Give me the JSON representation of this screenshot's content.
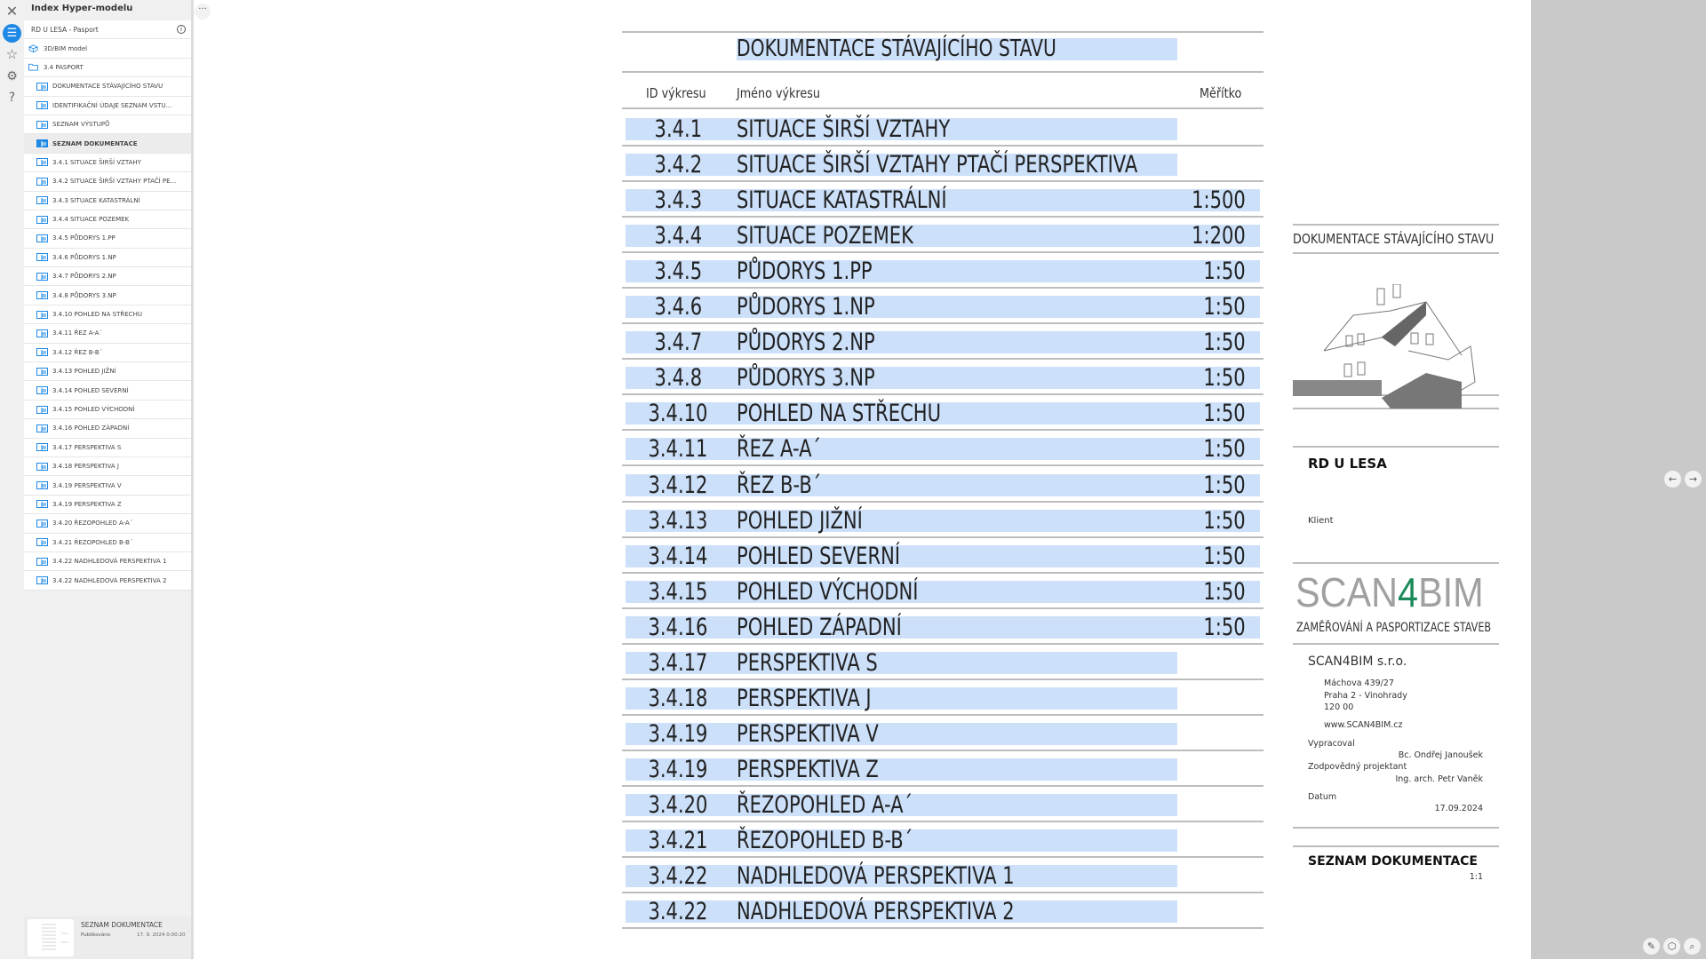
{
  "panel": {
    "title": "Index Hyper-modelu",
    "project": "RD U LESA - Pasport",
    "items": [
      {
        "label": "3D/BIM model",
        "type": "model",
        "level": 0
      },
      {
        "label": "3.4 PASPORT",
        "type": "folder",
        "level": 0
      },
      {
        "label": "DOKUMENTACE STÁVAJÍCÍHO STAVU",
        "type": "sheet",
        "level": 1
      },
      {
        "label": "IDENTIFIKAČNÍ ÚDAJE SEZNAM VSTU...",
        "type": "sheet",
        "level": 1
      },
      {
        "label": "SEZNAM VÝSTUPŮ",
        "type": "sheet",
        "level": 1
      },
      {
        "label": "SEZNAM DOKUMENTACE",
        "type": "sheet",
        "level": 1,
        "selected": true
      },
      {
        "label": "3.4.1 SITUACE ŠIRŠÍ VZTAHY",
        "type": "sheet",
        "level": 1
      },
      {
        "label": "3.4.2 SITUACE ŠIRŠÍ VZTAHY PTAČÍ PE...",
        "type": "sheet",
        "level": 1
      },
      {
        "label": "3.4.3 SITUACE KATASTRÁLNÍ",
        "type": "sheet",
        "level": 1
      },
      {
        "label": "3.4.4 SITUACE POZEMEK",
        "type": "sheet",
        "level": 1
      },
      {
        "label": "3.4.5 PŮDORYS 1.PP",
        "type": "sheet",
        "level": 1
      },
      {
        "label": "3.4.6 PŮDORYS 1.NP",
        "type": "sheet",
        "level": 1
      },
      {
        "label": "3.4.7 PŮDORYS 2.NP",
        "type": "sheet",
        "level": 1
      },
      {
        "label": "3.4.8 PŮDORYS 3.NP",
        "type": "sheet",
        "level": 1
      },
      {
        "label": "3.4.10 POHLED NA STŘECHU",
        "type": "sheet",
        "level": 1
      },
      {
        "label": "3.4.11 ŘEZ A-A´",
        "type": "sheet",
        "level": 1
      },
      {
        "label": "3.4.12 ŘEZ B-B´",
        "type": "sheet",
        "level": 1
      },
      {
        "label": "3.4.13 POHLED JIŽNÍ",
        "type": "sheet",
        "level": 1
      },
      {
        "label": "3.4.14 POHLED SEVERNÍ",
        "type": "sheet",
        "level": 1
      },
      {
        "label": "3.4.15 POHLED VÝCHODNÍ",
        "type": "sheet",
        "level": 1
      },
      {
        "label": "3.4.16 POHLED ZÁPADNÍ",
        "type": "sheet",
        "level": 1
      },
      {
        "label": "3.4.17 PERSPEKTIVA S",
        "type": "sheet",
        "level": 1
      },
      {
        "label": "3.4.18 PERSPEKTIVA J",
        "type": "sheet",
        "level": 1
      },
      {
        "label": "3.4.19 PERSPEKTIVA V",
        "type": "sheet",
        "level": 1
      },
      {
        "label": "3.4.19 PERSPEKTIVA Z",
        "type": "sheet",
        "level": 1
      },
      {
        "label": "3.4.20 ŘEZOPOHLED A-A´",
        "type": "sheet",
        "level": 1
      },
      {
        "label": "3.4.21 ŘEZOPOHLED B-B´",
        "type": "sheet",
        "level": 1
      },
      {
        "label": "3.4.22 NADHLEDOVÁ PERSPEKTIVA 1",
        "type": "sheet",
        "level": 1
      },
      {
        "label": "3.4.22 NADHLEDOVÁ PERSPEKTIVA 2",
        "type": "sheet",
        "level": 1
      }
    ],
    "card": {
      "title": "SEZNAM DOKUMENTACE",
      "status": "Publikováno",
      "date": "17. 9. 2024 0:00:20"
    }
  },
  "accent": "#1e88e5",
  "highlight": "#cce0fa",
  "sheet": {
    "title": "DOKUMENTACE STÁVAJÍCÍHO STAVU",
    "columns": [
      "ID výkresu",
      "Jméno výkresu",
      "Měřítko"
    ],
    "rows": [
      {
        "id": "3.4.1",
        "name": "SITUACE ŠIRŠÍ VZTAHY",
        "scale": ""
      },
      {
        "id": "3.4.2",
        "name": "SITUACE ŠIRŠÍ VZTAHY PTAČÍ PERSPEKTIVA",
        "scale": ""
      },
      {
        "id": "3.4.3",
        "name": "SITUACE KATASTRÁLNÍ",
        "scale": "1:500"
      },
      {
        "id": "3.4.4",
        "name": "SITUACE POZEMEK",
        "scale": "1:200"
      },
      {
        "id": "3.4.5",
        "name": "PŮDORYS 1.PP",
        "scale": "1:50"
      },
      {
        "id": "3.4.6",
        "name": "PŮDORYS 1.NP",
        "scale": "1:50"
      },
      {
        "id": "3.4.7",
        "name": "PŮDORYS 2.NP",
        "scale": "1:50"
      },
      {
        "id": "3.4.8",
        "name": "PŮDORYS 3.NP",
        "scale": "1:50"
      },
      {
        "id": "3.4.10",
        "name": "POHLED NA STŘECHU",
        "scale": "1:50"
      },
      {
        "id": "3.4.11",
        "name": "ŘEZ A-A´",
        "scale": "1:50"
      },
      {
        "id": "3.4.12",
        "name": "ŘEZ B-B´",
        "scale": "1:50"
      },
      {
        "id": "3.4.13",
        "name": "POHLED JIŽNÍ",
        "scale": "1:50"
      },
      {
        "id": "3.4.14",
        "name": "POHLED SEVERNÍ",
        "scale": "1:50"
      },
      {
        "id": "3.4.15",
        "name": "POHLED VÝCHODNÍ",
        "scale": "1:50"
      },
      {
        "id": "3.4.16",
        "name": "POHLED ZÁPADNÍ",
        "scale": "1:50"
      },
      {
        "id": "3.4.17",
        "name": "PERSPEKTIVA S",
        "scale": ""
      },
      {
        "id": "3.4.18",
        "name": "PERSPEKTIVA J",
        "scale": ""
      },
      {
        "id": "3.4.19",
        "name": "PERSPEKTIVA V",
        "scale": ""
      },
      {
        "id": "3.4.19",
        "name": "PERSPEKTIVA Z",
        "scale": ""
      },
      {
        "id": "3.4.20",
        "name": "ŘEZOPOHLED A-A´",
        "scale": ""
      },
      {
        "id": "3.4.21",
        "name": "ŘEZOPOHLED B-B´",
        "scale": ""
      },
      {
        "id": "3.4.22",
        "name": "NADHLEDOVÁ PERSPEKTIVA 1",
        "scale": ""
      },
      {
        "id": "3.4.22",
        "name": "NADHLEDOVÁ PERSPEKTIVA 2",
        "scale": ""
      }
    ]
  },
  "titleblock": {
    "heading": "DOKUMENTACE STÁVAJÍCÍHO STAVU",
    "project": "RD U LESA",
    "client_label": "Klient",
    "logo": {
      "left": "SCAN",
      "mid": "4",
      "right": "BIM",
      "color": "#1a8a5a"
    },
    "tagline": "ZAMĚŘOVÁNÍ A PASPORTIZACE STAVEB",
    "company": "SCAN4BIM s.r.o.",
    "address": [
      "Máchova 439/27",
      "Praha 2 - Vinohrady",
      "120 00"
    ],
    "web": "www.SCAN4BIM.cz",
    "prepared_label": "Vypracoval",
    "prepared_by": "Bc. Ondřej Janoušek",
    "responsible_label": "Zodpovědný projektant",
    "responsible": "Ing. arch. Petr Vaněk",
    "date_label": "Datum",
    "date": "17.09.2024",
    "sheet_name": "SEZNAM DOKUMENTACE",
    "sheet_scale": "1:1"
  }
}
